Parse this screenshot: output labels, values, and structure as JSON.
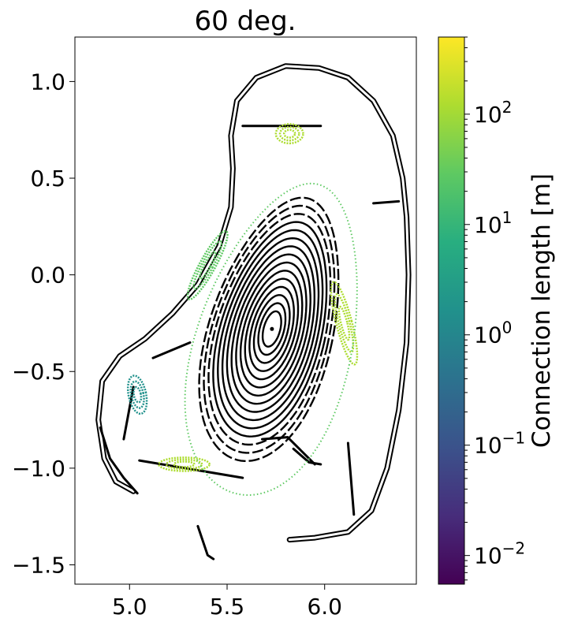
{
  "chart_data": {
    "type": "scatter",
    "title": "60 deg.",
    "xlabel": "",
    "ylabel": "",
    "xlim": [
      4.72,
      6.47
    ],
    "ylim": [
      -1.6,
      1.23
    ],
    "x_ticks": [
      5.0,
      5.5,
      6.0
    ],
    "x_tick_labels": [
      "5.0",
      "5.5",
      "6.0"
    ],
    "y_ticks": [
      1.0,
      0.5,
      0.0,
      -0.5,
      -1.0,
      -1.5
    ],
    "y_tick_labels": [
      "1.0",
      "0.5",
      "0.0",
      "−0.5",
      "−1.0",
      "−1.5"
    ],
    "grid": false,
    "colorbar": {
      "label": "Connection length [m]",
      "colormap": "viridis",
      "scale": "log",
      "range": [
        0.0055,
        500
      ],
      "ticks": [
        0.01,
        0.1,
        1,
        10,
        100
      ],
      "tick_bases": [
        "10",
        "10",
        "10",
        "10",
        "10"
      ],
      "tick_exponents": [
        "−2",
        "−1",
        "0",
        "1",
        "2"
      ]
    },
    "magnetic_axis": [
      5.73,
      -0.28
    ],
    "closed_surfaces_count": 15,
    "wall_outline": [
      [
        5.02,
        -1.12
      ],
      [
        4.93,
        -1.07
      ],
      [
        4.87,
        -0.95
      ],
      [
        4.84,
        -0.75
      ],
      [
        4.86,
        -0.55
      ],
      [
        4.95,
        -0.42
      ],
      [
        5.08,
        -0.33
      ],
      [
        5.22,
        -0.2
      ],
      [
        5.35,
        -0.05
      ],
      [
        5.46,
        0.15
      ],
      [
        5.52,
        0.35
      ],
      [
        5.53,
        0.55
      ],
      [
        5.52,
        0.72
      ],
      [
        5.55,
        0.9
      ],
      [
        5.65,
        1.02
      ],
      [
        5.8,
        1.08
      ],
      [
        5.97,
        1.07
      ],
      [
        6.12,
        1.02
      ],
      [
        6.25,
        0.9
      ],
      [
        6.35,
        0.72
      ],
      [
        6.4,
        0.5
      ],
      [
        6.42,
        0.3
      ],
      [
        6.43,
        0.0
      ],
      [
        6.42,
        -0.35
      ],
      [
        6.38,
        -0.7
      ],
      [
        6.32,
        -1.0
      ],
      [
        6.24,
        -1.22
      ],
      [
        6.12,
        -1.33
      ],
      [
        5.95,
        -1.36
      ],
      [
        5.82,
        -1.37
      ]
    ],
    "island_regions": [
      {
        "side": "top",
        "center": [
          5.82,
          0.73
        ],
        "connection_length": 150
      },
      {
        "side": "outboard",
        "center": [
          6.1,
          -0.25
        ],
        "connection_length": 60
      },
      {
        "side": "inboard",
        "center": [
          5.4,
          0.05
        ],
        "connection_length": 40
      },
      {
        "side": "lower-left",
        "center": [
          5.04,
          -0.62
        ],
        "connection_length": 3
      },
      {
        "side": "bottom",
        "center": [
          5.28,
          -0.98
        ],
        "connection_length": 120
      }
    ]
  }
}
